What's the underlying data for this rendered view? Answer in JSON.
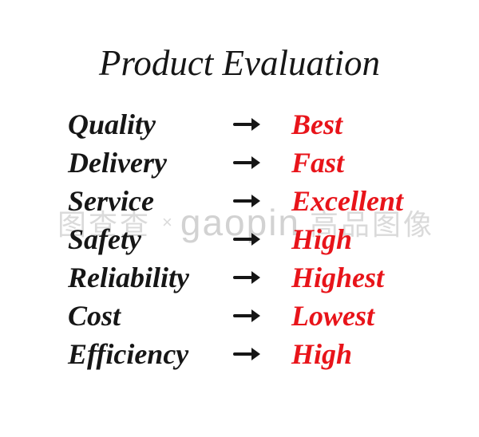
{
  "title": "Product Evaluation",
  "rows": [
    {
      "label": "Quality",
      "value": "Best"
    },
    {
      "label": "Delivery",
      "value": "Fast"
    },
    {
      "label": "Service",
      "value": "Excellent"
    },
    {
      "label": "Safety",
      "value": "High"
    },
    {
      "label": "Reliability",
      "value": "Highest"
    },
    {
      "label": "Cost",
      "value": "Lowest"
    },
    {
      "label": "Efficiency",
      "value": "High"
    }
  ],
  "watermark": {
    "left_cjk": "图查查",
    "separator": "×",
    "brand": "gaopin",
    "right_cjk": "高品图像"
  },
  "colors": {
    "label": "#161616",
    "value": "#e8141a",
    "arrow": "#161616",
    "watermark": "#d7d7d7",
    "background": "#ffffff"
  }
}
